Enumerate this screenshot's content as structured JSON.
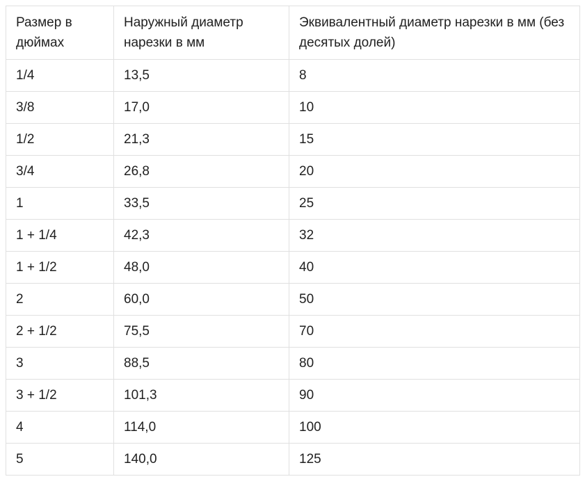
{
  "table": {
    "headers": [
      "Размер в дюймах",
      "Наружный диаметр нарезки в мм",
      "Эквивалентный диаметр нарезки в мм (без десятых долей)"
    ],
    "rows": [
      [
        "1/4",
        "13,5",
        "8"
      ],
      [
        "3/8",
        "17,0",
        "10"
      ],
      [
        "1/2",
        "21,3",
        "15"
      ],
      [
        "3/4",
        "26,8",
        "20"
      ],
      [
        "1",
        "33,5",
        "25"
      ],
      [
        "1 + 1/4",
        "42,3",
        "32"
      ],
      [
        "1 + 1/2",
        "48,0",
        "40"
      ],
      [
        "2",
        "60,0",
        "50"
      ],
      [
        "2 + 1/2",
        "75,5",
        "70"
      ],
      [
        "3",
        "88,5",
        "80"
      ],
      [
        "3 + 1/2",
        "101,3",
        "90"
      ],
      [
        "4",
        "114,0",
        "100"
      ],
      [
        "5",
        "140,0",
        "125"
      ]
    ]
  }
}
